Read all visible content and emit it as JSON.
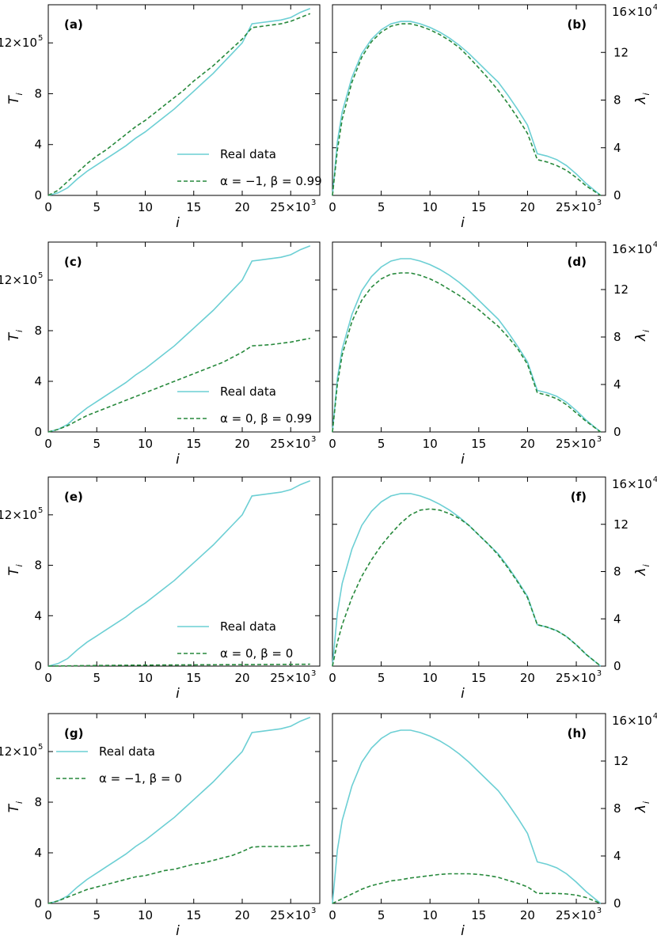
{
  "colors": {
    "real": "#6ccfd4",
    "model": "#27893c"
  },
  "axes": {
    "T_label": "T",
    "T_sub": "i",
    "lambda_label": "λ",
    "lambda_sub": "i",
    "x_label": "i",
    "x_ticks": [
      "0",
      "5",
      "10",
      "15",
      "20",
      "25×10"
    ],
    "x_exp": "3",
    "T_ticks": [
      "0",
      "4",
      "8",
      "12×10"
    ],
    "T_exp": "5",
    "lambda_ticks": [
      "0",
      "4",
      "8",
      "12",
      "16×10"
    ],
    "lambda_exp": "4"
  },
  "chart_data": [
    {
      "type": "line",
      "panel": "a",
      "label": "(a)",
      "xlabel": "i",
      "ylabel": "T_i",
      "xlim": [
        0,
        28
      ],
      "ylim": [
        0,
        15
      ],
      "x_unit": "×10^3",
      "y_unit": "×10^5",
      "legend_position": "bottom-right",
      "series": [
        {
          "name": "Real data",
          "style": "solid",
          "x": [
            0,
            1,
            2,
            3,
            4,
            5,
            6,
            7,
            8,
            9,
            10,
            11,
            12,
            13,
            14,
            15,
            16,
            17,
            18,
            19,
            20,
            21,
            22,
            23,
            24,
            25,
            26,
            27
          ],
          "y": [
            0,
            0.2,
            0.6,
            1.3,
            1.9,
            2.4,
            2.9,
            3.4,
            3.9,
            4.5,
            5.0,
            5.6,
            6.2,
            6.8,
            7.5,
            8.2,
            8.9,
            9.6,
            10.4,
            11.2,
            12.0,
            13.5,
            13.6,
            13.7,
            13.8,
            14.0,
            14.4,
            14.7
          ]
        },
        {
          "name": "α = −1, β = 0.99",
          "style": "dashed",
          "x": [
            0,
            1,
            2,
            3,
            4,
            5,
            6,
            7,
            8,
            9,
            10,
            11,
            12,
            13,
            14,
            15,
            16,
            17,
            18,
            19,
            20,
            21,
            22,
            23,
            24,
            25,
            26,
            27
          ],
          "y": [
            0,
            0.4,
            1.1,
            1.8,
            2.5,
            3.1,
            3.6,
            4.2,
            4.8,
            5.4,
            5.9,
            6.5,
            7.1,
            7.7,
            8.3,
            9.0,
            9.6,
            10.2,
            10.9,
            11.6,
            12.3,
            13.2,
            13.3,
            13.4,
            13.5,
            13.7,
            14.0,
            14.3
          ]
        }
      ]
    },
    {
      "type": "line",
      "panel": "b",
      "label": "(b)",
      "xlabel": "i",
      "ylabel": "λ_i",
      "xlim": [
        0,
        28
      ],
      "ylim": [
        0,
        16
      ],
      "x_unit": "×10^3",
      "y_unit": "×10^4",
      "series": [
        {
          "name": "Real data",
          "style": "solid",
          "x": [
            0,
            0.5,
            1,
            2,
            3,
            4,
            5,
            6,
            7,
            8,
            9,
            10,
            11,
            12,
            13,
            14,
            15,
            16,
            17,
            18,
            19,
            20,
            21,
            22,
            23,
            24,
            25,
            26,
            27.5
          ],
          "y": [
            0,
            4.5,
            7.0,
            9.9,
            11.9,
            13.1,
            13.9,
            14.4,
            14.6,
            14.6,
            14.4,
            14.1,
            13.7,
            13.2,
            12.6,
            11.9,
            11.1,
            10.3,
            9.5,
            8.4,
            7.2,
            5.9,
            3.5,
            3.3,
            3.0,
            2.5,
            1.8,
            1.0,
            0
          ]
        },
        {
          "name": "α = −1, β = 0.99",
          "style": "dashed",
          "x": [
            0,
            0.5,
            1,
            2,
            3,
            4,
            5,
            6,
            7,
            8,
            9,
            10,
            11,
            12,
            13,
            14,
            15,
            16,
            17,
            18,
            19,
            20,
            21,
            22,
            23,
            24,
            25,
            26,
            27.5
          ],
          "y": [
            0,
            3.8,
            6.4,
            9.5,
            11.6,
            12.9,
            13.7,
            14.2,
            14.4,
            14.4,
            14.2,
            13.9,
            13.5,
            13.0,
            12.4,
            11.6,
            10.7,
            9.8,
            8.8,
            7.7,
            6.5,
            5.2,
            3.0,
            2.8,
            2.5,
            2.1,
            1.5,
            0.8,
            0
          ]
        }
      ]
    },
    {
      "type": "line",
      "panel": "c",
      "label": "(c)",
      "xlabel": "i",
      "ylabel": "T_i",
      "xlim": [
        0,
        28
      ],
      "ylim": [
        0,
        15
      ],
      "x_unit": "×10^3",
      "y_unit": "×10^5",
      "legend_position": "bottom-right",
      "series": [
        {
          "name": "Real data",
          "style": "solid",
          "x": [
            0,
            1,
            2,
            3,
            4,
            5,
            6,
            7,
            8,
            9,
            10,
            11,
            12,
            13,
            14,
            15,
            16,
            17,
            18,
            19,
            20,
            21,
            22,
            23,
            24,
            25,
            26,
            27
          ],
          "y": [
            0,
            0.2,
            0.6,
            1.3,
            1.9,
            2.4,
            2.9,
            3.4,
            3.9,
            4.5,
            5.0,
            5.6,
            6.2,
            6.8,
            7.5,
            8.2,
            8.9,
            9.6,
            10.4,
            11.2,
            12.0,
            13.5,
            13.6,
            13.7,
            13.8,
            14.0,
            14.4,
            14.7
          ]
        },
        {
          "name": "α = 0, β = 0.99",
          "style": "dashed",
          "x": [
            0,
            1,
            2,
            3,
            4,
            5,
            6,
            7,
            8,
            9,
            10,
            11,
            12,
            13,
            14,
            15,
            16,
            17,
            18,
            19,
            20,
            21,
            22,
            23,
            24,
            25,
            26,
            27
          ],
          "y": [
            0,
            0.2,
            0.5,
            0.9,
            1.3,
            1.6,
            1.9,
            2.2,
            2.5,
            2.8,
            3.1,
            3.4,
            3.7,
            4.0,
            4.3,
            4.6,
            4.9,
            5.2,
            5.5,
            5.9,
            6.3,
            6.8,
            6.85,
            6.9,
            7.0,
            7.1,
            7.25,
            7.4
          ]
        }
      ]
    },
    {
      "type": "line",
      "panel": "d",
      "label": "(d)",
      "xlabel": "i",
      "ylabel": "λ_i",
      "xlim": [
        0,
        28
      ],
      "ylim": [
        0,
        16
      ],
      "x_unit": "×10^3",
      "y_unit": "×10^4",
      "series": [
        {
          "name": "Real data",
          "style": "solid",
          "x": [
            0,
            0.5,
            1,
            2,
            3,
            4,
            5,
            6,
            7,
            8,
            9,
            10,
            11,
            12,
            13,
            14,
            15,
            16,
            17,
            18,
            19,
            20,
            21,
            22,
            23,
            24,
            25,
            26,
            27.5
          ],
          "y": [
            0,
            4.5,
            7.0,
            9.9,
            11.9,
            13.1,
            13.9,
            14.4,
            14.6,
            14.6,
            14.4,
            14.1,
            13.7,
            13.2,
            12.6,
            11.9,
            11.1,
            10.3,
            9.5,
            8.4,
            7.2,
            5.9,
            3.5,
            3.3,
            3.0,
            2.5,
            1.8,
            1.0,
            0
          ]
        },
        {
          "name": "α = 0, β = 0.99",
          "style": "dashed",
          "x": [
            0,
            0.5,
            1,
            2,
            3,
            4,
            5,
            6,
            7,
            8,
            9,
            10,
            11,
            12,
            13,
            14,
            15,
            16,
            17,
            18,
            19,
            20,
            21,
            22,
            23,
            24,
            25,
            26,
            27.5
          ],
          "y": [
            0,
            4.0,
            6.5,
            9.3,
            11.1,
            12.2,
            12.9,
            13.3,
            13.4,
            13.4,
            13.2,
            12.9,
            12.5,
            12.0,
            11.5,
            10.9,
            10.3,
            9.6,
            8.9,
            8.0,
            7.0,
            5.7,
            3.3,
            3.1,
            2.8,
            2.3,
            1.6,
            0.9,
            0
          ]
        }
      ]
    },
    {
      "type": "line",
      "panel": "e",
      "label": "(e)",
      "xlabel": "i",
      "ylabel": "T_i",
      "xlim": [
        0,
        28
      ],
      "ylim": [
        0,
        15
      ],
      "x_unit": "×10^3",
      "y_unit": "×10^5",
      "legend_position": "bottom-right",
      "series": [
        {
          "name": "Real data",
          "style": "solid",
          "x": [
            0,
            1,
            2,
            3,
            4,
            5,
            6,
            7,
            8,
            9,
            10,
            11,
            12,
            13,
            14,
            15,
            16,
            17,
            18,
            19,
            20,
            21,
            22,
            23,
            24,
            25,
            26,
            27
          ],
          "y": [
            0,
            0.2,
            0.6,
            1.3,
            1.9,
            2.4,
            2.9,
            3.4,
            3.9,
            4.5,
            5.0,
            5.6,
            6.2,
            6.8,
            7.5,
            8.2,
            8.9,
            9.6,
            10.4,
            11.2,
            12.0,
            13.5,
            13.6,
            13.7,
            13.8,
            14.0,
            14.4,
            14.7
          ]
        },
        {
          "name": "α = 0, β = 0",
          "style": "dashed",
          "x": [
            0,
            5,
            10,
            15,
            20,
            25,
            27
          ],
          "y": [
            0,
            0.05,
            0.08,
            0.1,
            0.12,
            0.14,
            0.15
          ]
        }
      ]
    },
    {
      "type": "line",
      "panel": "f",
      "label": "(f)",
      "xlabel": "i",
      "ylabel": "λ_i",
      "xlim": [
        0,
        28
      ],
      "ylim": [
        0,
        16
      ],
      "x_unit": "×10^3",
      "y_unit": "×10^4",
      "series": [
        {
          "name": "Real data",
          "style": "solid",
          "x": [
            0,
            0.5,
            1,
            2,
            3,
            4,
            5,
            6,
            7,
            8,
            9,
            10,
            11,
            12,
            13,
            14,
            15,
            16,
            17,
            18,
            19,
            20,
            21,
            22,
            23,
            24,
            25,
            26,
            27.5
          ],
          "y": [
            0,
            4.5,
            7.0,
            9.9,
            11.9,
            13.1,
            13.9,
            14.4,
            14.6,
            14.6,
            14.4,
            14.1,
            13.7,
            13.2,
            12.6,
            11.9,
            11.1,
            10.3,
            9.5,
            8.4,
            7.2,
            5.9,
            3.5,
            3.3,
            3.0,
            2.5,
            1.8,
            1.0,
            0
          ]
        },
        {
          "name": "α = 0, β = 0",
          "style": "dashed",
          "x": [
            0,
            0.5,
            1,
            2,
            3,
            4,
            5,
            6,
            7,
            8,
            9,
            10,
            11,
            12,
            13,
            14,
            15,
            16,
            17,
            18,
            19,
            20,
            21,
            22,
            23,
            24,
            25,
            26,
            27.5
          ],
          "y": [
            0,
            2.0,
            3.5,
            5.8,
            7.6,
            9.0,
            10.2,
            11.2,
            12.1,
            12.8,
            13.2,
            13.3,
            13.2,
            12.9,
            12.5,
            11.9,
            11.1,
            10.3,
            9.4,
            8.3,
            7.1,
            5.8,
            3.5,
            3.3,
            3.0,
            2.5,
            1.8,
            1.0,
            0
          ]
        }
      ]
    },
    {
      "type": "line",
      "panel": "g",
      "label": "(g)",
      "xlabel": "i",
      "ylabel": "T_i",
      "xlim": [
        0,
        28
      ],
      "ylim": [
        0,
        15
      ],
      "x_unit": "×10^3",
      "y_unit": "×10^5",
      "legend_position": "top-left",
      "series": [
        {
          "name": "Real data",
          "style": "solid",
          "x": [
            0,
            1,
            2,
            3,
            4,
            5,
            6,
            7,
            8,
            9,
            10,
            11,
            12,
            13,
            14,
            15,
            16,
            17,
            18,
            19,
            20,
            21,
            22,
            23,
            24,
            25,
            26,
            27
          ],
          "y": [
            0,
            0.2,
            0.6,
            1.3,
            1.9,
            2.4,
            2.9,
            3.4,
            3.9,
            4.5,
            5.0,
            5.6,
            6.2,
            6.8,
            7.5,
            8.2,
            8.9,
            9.6,
            10.4,
            11.2,
            12.0,
            13.5,
            13.6,
            13.7,
            13.8,
            14.0,
            14.4,
            14.7
          ]
        },
        {
          "name": "α = −1, β = 0",
          "style": "dashed",
          "x": [
            0,
            1,
            2,
            3,
            4,
            5,
            6,
            7,
            8,
            9,
            10,
            11,
            12,
            13,
            14,
            15,
            16,
            17,
            18,
            19,
            20,
            21,
            22,
            23,
            24,
            25,
            26,
            27
          ],
          "y": [
            0,
            0.2,
            0.5,
            0.8,
            1.1,
            1.3,
            1.5,
            1.7,
            1.9,
            2.1,
            2.2,
            2.4,
            2.6,
            2.7,
            2.9,
            3.1,
            3.2,
            3.4,
            3.6,
            3.8,
            4.1,
            4.45,
            4.5,
            4.5,
            4.5,
            4.5,
            4.55,
            4.6
          ]
        }
      ]
    },
    {
      "type": "line",
      "panel": "h",
      "label": "(h)",
      "xlabel": "i",
      "ylabel": "λ_i",
      "xlim": [
        0,
        28
      ],
      "ylim": [
        0,
        16
      ],
      "x_unit": "×10^3",
      "y_unit": "×10^4",
      "series": [
        {
          "name": "Real data",
          "style": "solid",
          "x": [
            0,
            0.5,
            1,
            2,
            3,
            4,
            5,
            6,
            7,
            8,
            9,
            10,
            11,
            12,
            13,
            14,
            15,
            16,
            17,
            18,
            19,
            20,
            21,
            22,
            23,
            24,
            25,
            26,
            27.5
          ],
          "y": [
            0,
            4.5,
            7.0,
            9.9,
            11.9,
            13.1,
            13.9,
            14.4,
            14.6,
            14.6,
            14.4,
            14.1,
            13.7,
            13.2,
            12.6,
            11.9,
            11.1,
            10.3,
            9.5,
            8.4,
            7.2,
            5.9,
            3.5,
            3.3,
            3.0,
            2.5,
            1.8,
            1.0,
            0
          ]
        },
        {
          "name": "α = −1, β = 0",
          "style": "dashed",
          "x": [
            0,
            1,
            2,
            3,
            4,
            5,
            6,
            7,
            8,
            9,
            10,
            11,
            12,
            13,
            14,
            15,
            16,
            17,
            18,
            19,
            20,
            21,
            22,
            23,
            24,
            25,
            26,
            27.5
          ],
          "y": [
            0,
            0.4,
            0.8,
            1.2,
            1.5,
            1.7,
            1.9,
            2.0,
            2.15,
            2.25,
            2.35,
            2.45,
            2.5,
            2.5,
            2.5,
            2.45,
            2.35,
            2.2,
            1.95,
            1.7,
            1.4,
            0.85,
            0.85,
            0.85,
            0.8,
            0.7,
            0.5,
            0
          ]
        }
      ]
    }
  ]
}
